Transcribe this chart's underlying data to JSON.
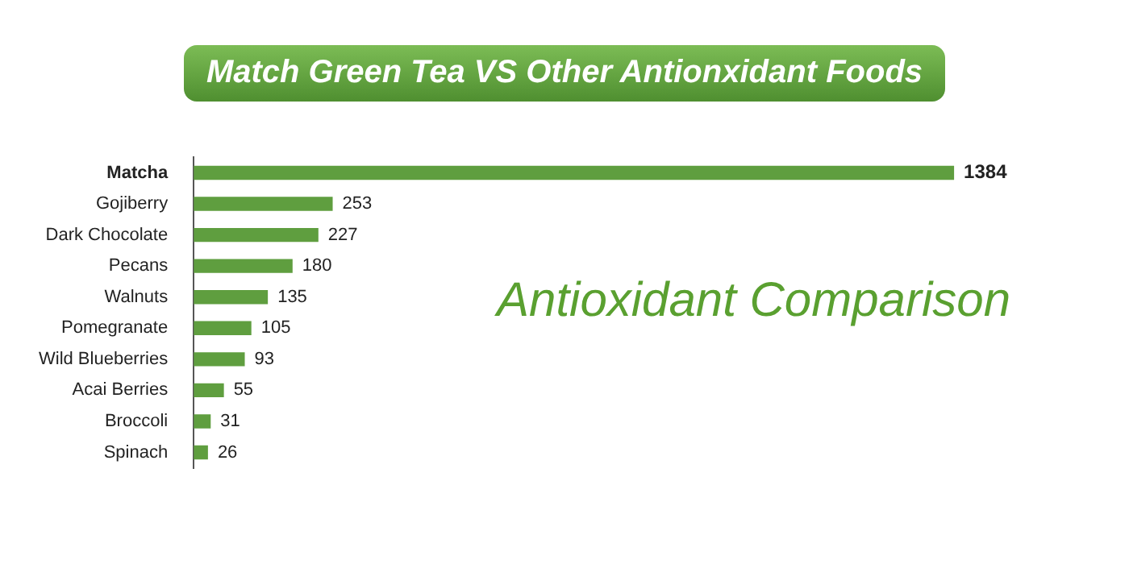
{
  "chart_data": {
    "type": "bar",
    "orientation": "horizontal",
    "title": "Match Green Tea VS Other Antionxidant Foods",
    "subtitle": "Antioxidant Comparison",
    "categories": [
      "Matcha",
      "Gojiberry",
      "Dark Chocolate",
      "Pecans",
      "Walnuts",
      "Pomegranate",
      "Wild Blueberries",
      "Acai Berries",
      "Broccoli",
      "Spinach"
    ],
    "values": [
      1384,
      253,
      227,
      180,
      135,
      105,
      93,
      55,
      31,
      26
    ],
    "color": "#5f9e3f",
    "data_labels": true,
    "grid": false,
    "legend": false
  }
}
